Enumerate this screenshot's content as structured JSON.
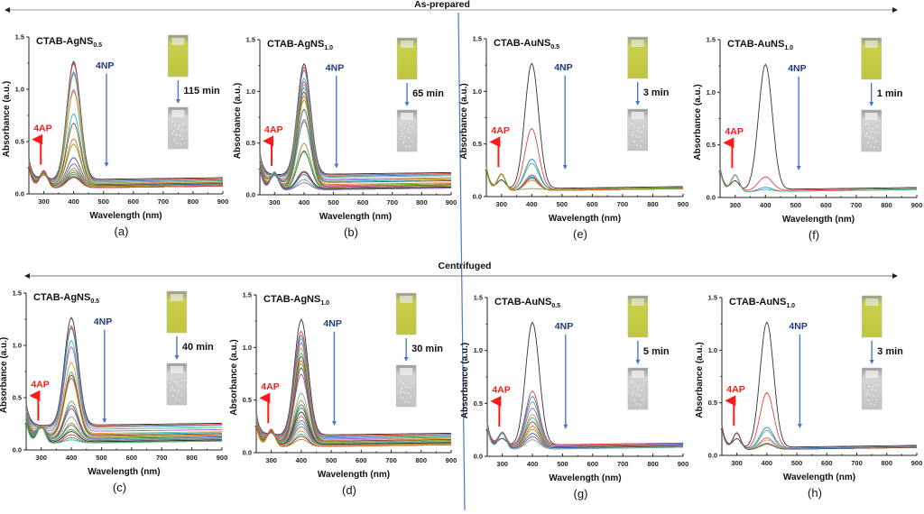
{
  "sections": [
    {
      "label": "As-prepared",
      "arrow": "double-headed-arrow"
    },
    {
      "label": "Centrifuged",
      "arrow": "double-headed-arrow"
    }
  ],
  "divider_color": "#4a78c8",
  "colors": {
    "arrow_4ap": "#ff1a1a",
    "arrow_4np": "#4a78c8",
    "label_4np": "#1f3a7a",
    "cuvette_yellow": "#d9e05a",
    "cuvette_clear": "#c8c8c8"
  },
  "chart_data": [
    {
      "id": "a",
      "type": "line",
      "section": "As-prepared",
      "title": "CTAB-AgNS",
      "title_sub": "0.5",
      "xlabel": "Wavelength (nm)",
      "ylabel": "Absorbance (a.u.)",
      "xlim": [
        250,
        900
      ],
      "ylim": [
        0,
        1.5
      ],
      "xticks": [
        "300",
        "400",
        "500",
        "600",
        "700",
        "800",
        "900"
      ],
      "yticks": [
        "0.0",
        "0.5",
        "1.0",
        "1.5"
      ],
      "annotation_4ap": "4AP",
      "annotation_4np": "4NP",
      "time_label": "115 min",
      "panel_letter": "(a)",
      "series_peak_400": [
        1.27,
        1.25,
        1.17,
        1.15,
        1.0,
        0.98,
        0.77,
        0.68,
        0.53,
        0.48,
        0.35,
        0.29,
        0.25,
        0.23,
        0.21,
        0.19,
        0.17,
        0.16
      ],
      "series_baseline": [
        0.14,
        0.13,
        0.12,
        0.11,
        0.1,
        0.1,
        0.09,
        0.09,
        0.08,
        0.08,
        0.08,
        0.07,
        0.07,
        0.07,
        0.06,
        0.06,
        0.06,
        0.06
      ]
    },
    {
      "id": "b",
      "type": "line",
      "section": "As-prepared",
      "title": "CTAB-AgNS",
      "title_sub": "1.0",
      "xlabel": "Wavelength (nm)",
      "ylabel": "Absorbance (a.u.)",
      "xlim": [
        250,
        900
      ],
      "ylim": [
        0,
        1.5
      ],
      "xticks": [
        "300",
        "400",
        "500",
        "600",
        "700",
        "800",
        "900"
      ],
      "yticks": [
        "0.0",
        "0.5",
        "1.0",
        "1.5"
      ],
      "annotation_4ap": "4AP",
      "annotation_4np": "4NP",
      "time_label": "65 min",
      "panel_letter": "(b)",
      "series_peak_400": [
        1.27,
        1.24,
        1.21,
        1.13,
        1.1,
        1.07,
        1.04,
        1.0,
        0.96,
        0.92,
        0.83,
        0.73,
        0.71,
        0.5,
        0.43,
        0.42,
        0.23,
        0.22,
        0.2,
        0.15,
        0.12
      ],
      "series_baseline": [
        0.2,
        0.19,
        0.18,
        0.17,
        0.15,
        0.14,
        0.13,
        0.12,
        0.1,
        0.09,
        0.08,
        0.08,
        0.07,
        0.07,
        0.06,
        0.06,
        0.06,
        0.05,
        0.05,
        0.05,
        0.05
      ]
    },
    {
      "id": "e",
      "type": "line",
      "section": "As-prepared",
      "title": "CTAB-AuNS",
      "title_sub": "0.5",
      "xlabel": "Wavelength (nm)",
      "ylabel": "Absorbance (a.u.)",
      "xlim": [
        250,
        900
      ],
      "ylim": [
        0,
        1.5
      ],
      "xticks": [
        "300",
        "400",
        "500",
        "600",
        "700",
        "800",
        "900"
      ],
      "yticks": [
        "0.0",
        "0.5",
        "1.0",
        "1.5"
      ],
      "annotation_4ap": "4AP",
      "annotation_4np": "4NP",
      "time_label": "3 min",
      "panel_letter": "(e)",
      "series_peak_400": [
        1.27,
        0.65,
        0.36,
        0.32,
        0.21,
        0.2,
        0.19,
        0.18,
        0.16,
        0.08
      ],
      "series_baseline": [
        0.08,
        0.07,
        0.07,
        0.07,
        0.06,
        0.06,
        0.06,
        0.06,
        0.06,
        0.07
      ]
    },
    {
      "id": "f",
      "type": "line",
      "section": "As-prepared",
      "title": "CTAB-AuNS",
      "title_sub": "1.0",
      "xlabel": "Wavelength (nm)",
      "ylabel": "Absorbance (a.u.)",
      "xlim": [
        250,
        900
      ],
      "ylim": [
        0,
        1.5
      ],
      "xticks": [
        "300",
        "400",
        "500",
        "600",
        "700",
        "800",
        "900"
      ],
      "yticks": [
        "0.0",
        "0.5",
        "1.0",
        "1.5"
      ],
      "annotation_4ap": "4AP",
      "annotation_4np": "4NP",
      "time_label": "1 min",
      "panel_letter": "(f)",
      "series_peak_400": [
        1.27,
        0.2,
        0.1,
        0.08
      ],
      "series_baseline": [
        0.08,
        0.07,
        0.06,
        0.06
      ]
    },
    {
      "id": "c",
      "type": "line",
      "section": "Centrifuged",
      "title": "CTAB-AgNS",
      "title_sub": "0.5",
      "xlabel": "Wavelength (nm)",
      "ylabel": "Absorbance (a.u.)",
      "xlim": [
        250,
        900
      ],
      "ylim": [
        0,
        1.5
      ],
      "xticks": [
        "300",
        "400",
        "500",
        "600",
        "700",
        "800",
        "900"
      ],
      "yticks": [
        "0.0",
        "0.5",
        "1.0",
        "1.5"
      ],
      "annotation_4ap": "4AP",
      "annotation_4np": "4NP",
      "time_label": "40 min",
      "panel_letter": "(c)",
      "series_peak_400": [
        1.27,
        1.19,
        1.17,
        1.05,
        0.99,
        0.84,
        0.75,
        0.72,
        0.69,
        0.47,
        0.43,
        0.4,
        0.32,
        0.26,
        0.24,
        0.2,
        0.18,
        0.15,
        0.12,
        0.1
      ],
      "series_baseline": [
        0.24,
        0.23,
        0.22,
        0.2,
        0.18,
        0.16,
        0.15,
        0.14,
        0.13,
        0.12,
        0.11,
        0.1,
        0.1,
        0.09,
        0.09,
        0.08,
        0.08,
        0.07,
        0.07,
        0.07
      ]
    },
    {
      "id": "d",
      "type": "line",
      "section": "Centrifuged",
      "title": "CTAB-AgNS",
      "title_sub": "1.0",
      "xlabel": "Wavelength (nm)",
      "ylabel": "Absorbance (a.u.)",
      "xlim": [
        250,
        900
      ],
      "ylim": [
        0,
        1.5
      ],
      "xticks": [
        "300",
        "400",
        "500",
        "600",
        "700",
        "800",
        "900"
      ],
      "yticks": [
        "0.0",
        "0.5",
        "1.0",
        "1.5"
      ],
      "annotation_4ap": "4AP",
      "annotation_4np": "4NP",
      "time_label": "30 min",
      "panel_letter": "(d)",
      "series_peak_400": [
        1.27,
        1.16,
        1.12,
        1.09,
        1.05,
        1.0,
        0.95,
        0.92,
        0.88,
        0.85,
        0.81,
        0.75,
        0.57,
        0.5,
        0.46,
        0.43,
        0.39,
        0.35,
        0.31,
        0.28,
        0.25,
        0.21,
        0.18,
        0.16,
        0.13
      ],
      "series_baseline": [
        0.17,
        0.16,
        0.15,
        0.14,
        0.13,
        0.12,
        0.11,
        0.11,
        0.1,
        0.1,
        0.09,
        0.09,
        0.09,
        0.08,
        0.08,
        0.08,
        0.08,
        0.07,
        0.07,
        0.07,
        0.07,
        0.07,
        0.06,
        0.06,
        0.06
      ]
    },
    {
      "id": "g",
      "type": "line",
      "section": "Centrifuged",
      "title": "CTAB-AuNS",
      "title_sub": "0.5",
      "xlabel": "Wavelength (nm)",
      "ylabel": "Absorbance (a.u.)",
      "xlim": [
        250,
        900
      ],
      "ylim": [
        0,
        1.5
      ],
      "xticks": [
        "300",
        "400",
        "500",
        "600",
        "700",
        "800",
        "900"
      ],
      "yticks": [
        "0.0",
        "0.5",
        "1.0",
        "1.5"
      ],
      "annotation_4ap": "4AP",
      "annotation_4np": "4NP",
      "time_label": "5 min",
      "panel_letter": "(g)",
      "series_peak_400": [
        1.27,
        0.62,
        0.57,
        0.52,
        0.46,
        0.4,
        0.37,
        0.33,
        0.29,
        0.26,
        0.22,
        0.19,
        0.16
      ],
      "series_baseline": [
        0.11,
        0.11,
        0.1,
        0.1,
        0.1,
        0.09,
        0.09,
        0.09,
        0.08,
        0.08,
        0.08,
        0.07,
        0.07
      ]
    },
    {
      "id": "h",
      "type": "line",
      "section": "Centrifuged",
      "title": "CTAB-AuNS",
      "title_sub": "1.0",
      "xlabel": "Wavelength (nm)",
      "ylabel": "Absorbance (a.u.)",
      "xlim": [
        250,
        900
      ],
      "ylim": [
        0,
        1.5
      ],
      "xticks": [
        "300",
        "400",
        "500",
        "600",
        "700",
        "800",
        "900"
      ],
      "yticks": [
        "0.0",
        "0.5",
        "1.0",
        "1.5"
      ],
      "annotation_4ap": "4AP",
      "annotation_4np": "4NP",
      "time_label": "3 min",
      "panel_letter": "(h)",
      "series_peak_400": [
        1.27,
        0.6,
        0.27,
        0.24,
        0.17,
        0.15,
        0.12,
        0.11
      ],
      "series_baseline": [
        0.08,
        0.07,
        0.07,
        0.06,
        0.06,
        0.06,
        0.06,
        0.06
      ]
    }
  ],
  "series_palette": [
    "#333333",
    "#e8423f",
    "#3a7fd6",
    "#4cb86b",
    "#a259d9",
    "#e0a11b",
    "#19b9c9",
    "#8b4a2b",
    "#e86a1c",
    "#7aa91f",
    "#2f5fb3",
    "#c0397a",
    "#5fb7a0",
    "#b08a1a",
    "#6e6e6e",
    "#1aa04a"
  ]
}
